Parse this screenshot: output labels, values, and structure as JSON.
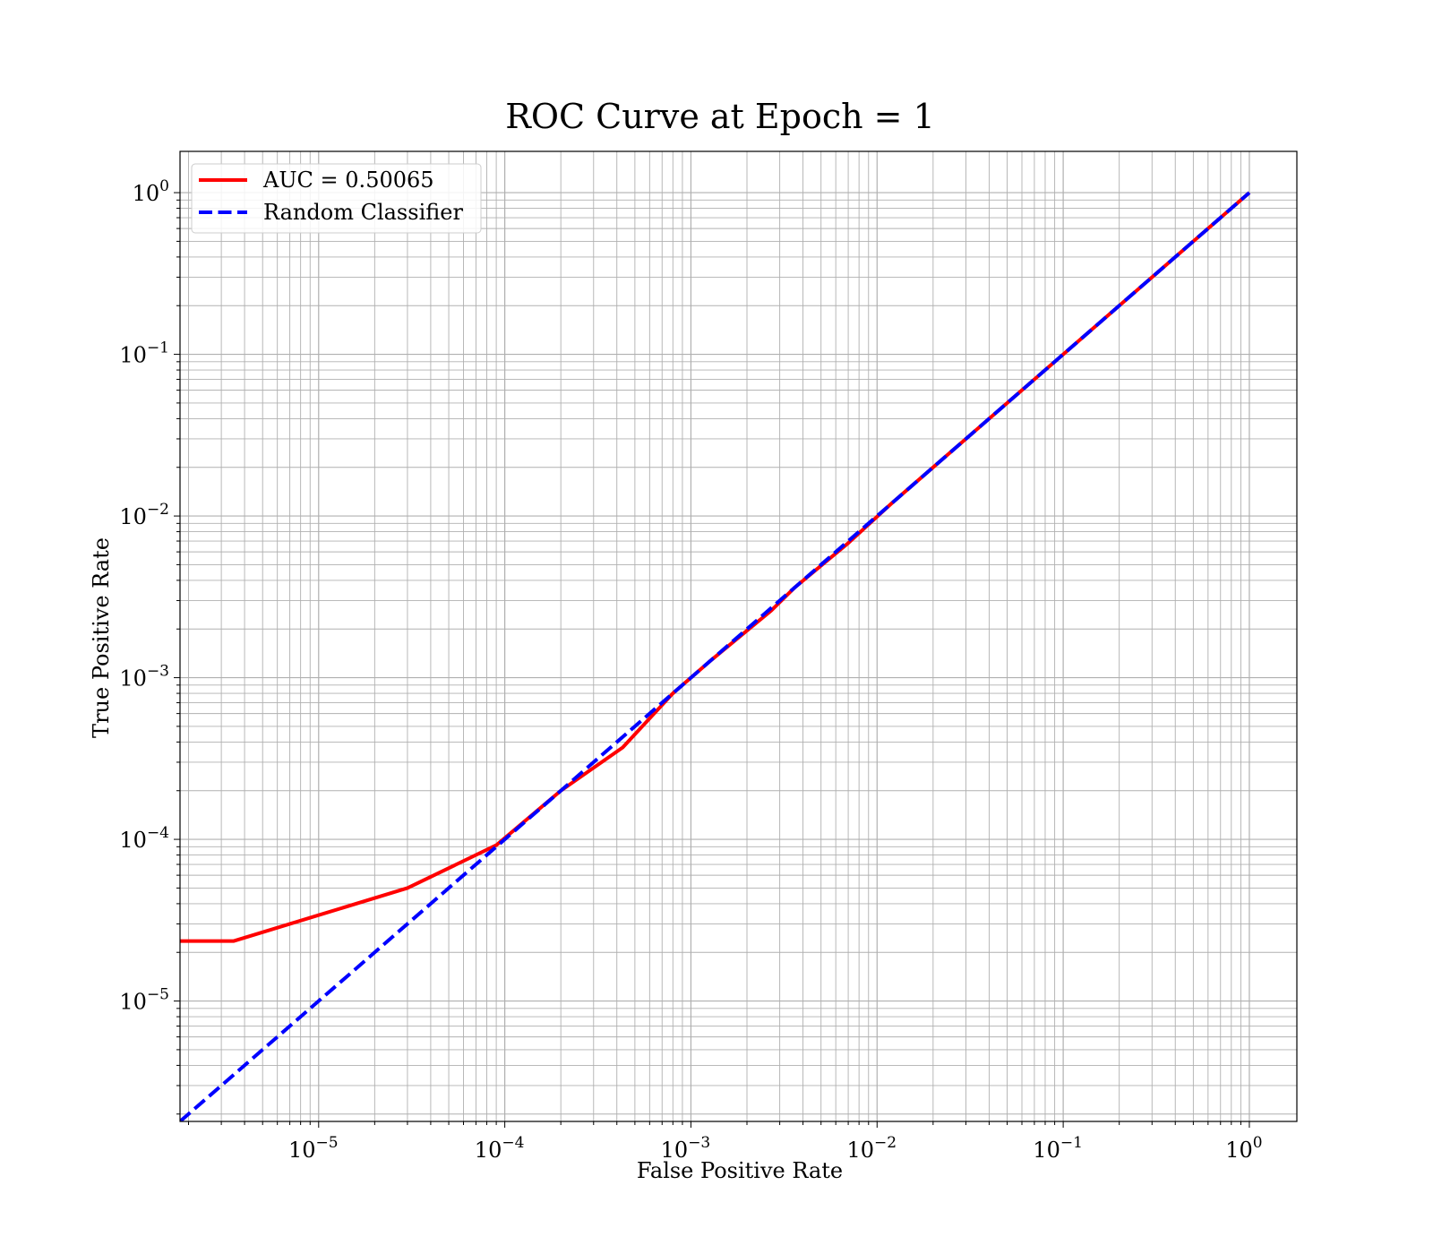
{
  "chart_data": {
    "type": "line",
    "title": "ROC Curve at Epoch = 1",
    "xlabel": "False Positive Rate",
    "ylabel": "True Positive Rate",
    "xscale": "log",
    "yscale": "log",
    "xlim": [
      1.8e-06,
      1.8
    ],
    "ylim": [
      1.8e-06,
      1.8
    ],
    "grid": "major and minor",
    "legend_position": "top-left",
    "x_tick_labels": [
      {
        "value": 1e-05,
        "base": "10",
        "exp": "−5"
      },
      {
        "value": 0.0001,
        "base": "10",
        "exp": "−4"
      },
      {
        "value": 0.001,
        "base": "10",
        "exp": "−3"
      },
      {
        "value": 0.01,
        "base": "10",
        "exp": "−2"
      },
      {
        "value": 0.1,
        "base": "10",
        "exp": "−1"
      },
      {
        "value": 1,
        "base": "10",
        "exp": "0"
      }
    ],
    "y_tick_labels": [
      {
        "value": 1e-05,
        "base": "10",
        "exp": "−5"
      },
      {
        "value": 0.0001,
        "base": "10",
        "exp": "−4"
      },
      {
        "value": 0.001,
        "base": "10",
        "exp": "−3"
      },
      {
        "value": 0.01,
        "base": "10",
        "exp": "−2"
      },
      {
        "value": 0.1,
        "base": "10",
        "exp": "−1"
      },
      {
        "value": 1,
        "base": "10",
        "exp": "0"
      }
    ],
    "series": [
      {
        "name": "AUC = 0.50065",
        "color": "#ff0000",
        "style": "solid",
        "x": [
          1.8e-06,
          3.5e-06,
          3e-05,
          9e-05,
          0.0002,
          0.00043,
          0.0008,
          0.00125,
          0.0027,
          0.0036,
          0.007,
          0.012,
          0.03,
          0.1,
          0.3,
          1.0
        ],
        "y": [
          2.35e-05,
          2.35e-05,
          5e-05,
          9.2e-05,
          0.0002,
          0.00037,
          0.0008,
          0.00125,
          0.0026,
          0.0036,
          0.0068,
          0.012,
          0.03,
          0.1,
          0.3,
          1.0
        ]
      },
      {
        "name": "Random Classifier",
        "color": "#0000ff",
        "style": "dashed",
        "x": [
          1.8e-06,
          1.0
        ],
        "y": [
          1.8e-06,
          1.0
        ]
      }
    ]
  }
}
